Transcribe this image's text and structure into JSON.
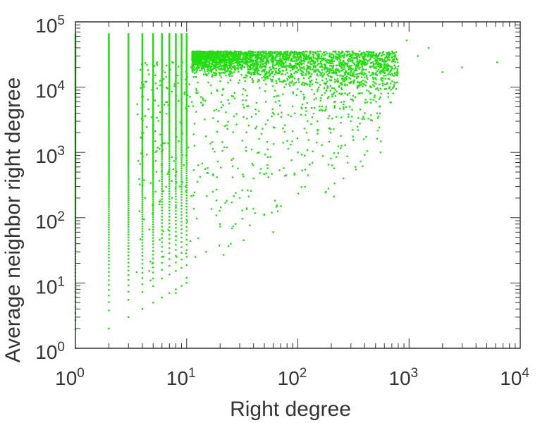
{
  "chart_data": {
    "type": "scatter",
    "xlabel": "Right degree",
    "ylabel": "Average neighbor right degree",
    "x_scale": "log",
    "y_scale": "log",
    "xlim": [
      1,
      10000
    ],
    "ylim": [
      1,
      100000
    ],
    "grid": false,
    "legend": "none",
    "x_ticks": [
      {
        "base": "10",
        "exp": "0"
      },
      {
        "base": "10",
        "exp": "1"
      },
      {
        "base": "10",
        "exp": "2"
      },
      {
        "base": "10",
        "exp": "3"
      },
      {
        "base": "10",
        "exp": "4"
      }
    ],
    "y_ticks": [
      {
        "base": "10",
        "exp": "0"
      },
      {
        "base": "10",
        "exp": "1"
      },
      {
        "base": "10",
        "exp": "2"
      },
      {
        "base": "10",
        "exp": "3"
      },
      {
        "base": "10",
        "exp": "4"
      },
      {
        "base": "10",
        "exp": "5"
      }
    ],
    "colors": {
      "points": "#22dd11",
      "axis": "#333333"
    },
    "columns": [
      {
        "x": 1,
        "y_range": [
          1,
          65000
        ]
      },
      {
        "x": 2,
        "y_range": [
          2,
          65000
        ]
      },
      {
        "x": 3,
        "y_range": [
          3,
          65000
        ]
      },
      {
        "x": 4,
        "y_range": [
          4,
          65000
        ]
      },
      {
        "x": 5,
        "y_range": [
          5,
          65000
        ]
      },
      {
        "x": 6,
        "y_range": [
          6,
          65000
        ]
      },
      {
        "x": 7,
        "y_range": [
          7,
          65000
        ]
      },
      {
        "x": 8,
        "y_range": [
          8,
          65000
        ]
      },
      {
        "x": 9,
        "y_range": [
          9,
          65000
        ]
      },
      {
        "x": 10,
        "y_range": [
          10,
          65000
        ]
      }
    ],
    "scatter_points": [
      {
        "x": 950,
        "y": 52000
      },
      {
        "x": 1200,
        "y": 30000
      },
      {
        "x": 1500,
        "y": 40000
      },
      {
        "x": 2000,
        "y": 17000
      },
      {
        "x": 3000,
        "y": 20000
      },
      {
        "x": 6200,
        "y": 24000
      },
      {
        "x": 600,
        "y": 26000
      },
      {
        "x": 800,
        "y": 21000
      },
      {
        "x": 700,
        "y": 16000
      },
      {
        "x": 500,
        "y": 30000
      },
      {
        "x": 450,
        "y": 15000
      },
      {
        "x": 350,
        "y": 22000
      },
      {
        "x": 550,
        "y": 7000
      },
      {
        "x": 400,
        "y": 4000
      },
      {
        "x": 330,
        "y": 600
      },
      {
        "x": 300,
        "y": 12000
      },
      {
        "x": 250,
        "y": 8000
      },
      {
        "x": 200,
        "y": 18000
      },
      {
        "x": 180,
        "y": 5000
      },
      {
        "x": 150,
        "y": 3000
      },
      {
        "x": 120,
        "y": 2000
      },
      {
        "x": 100,
        "y": 1000
      },
      {
        "x": 80,
        "y": 1500
      },
      {
        "x": 60,
        "y": 60
      },
      {
        "x": 50,
        "y": 110
      },
      {
        "x": 40,
        "y": 400
      },
      {
        "x": 30,
        "y": 200
      },
      {
        "x": 25,
        "y": 40
      },
      {
        "x": 20,
        "y": 80
      },
      {
        "x": 15,
        "y": 30
      },
      {
        "x": 12,
        "y": 25
      },
      {
        "x": 10,
        "y": 12
      },
      {
        "x": 8,
        "y": 7
      }
    ]
  }
}
